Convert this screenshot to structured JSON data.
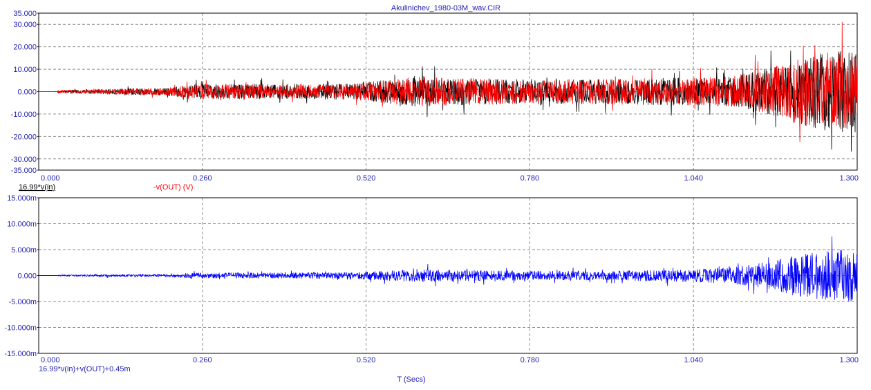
{
  "title": "Akulinichev_1980-03M_wav.CIR",
  "xlabel": "T (Secs)",
  "colors": {
    "axis_text": "#1f1fb4",
    "grid": "#8c8c8c",
    "trace_in": "#000000",
    "trace_out": "#ff0000",
    "trace_sum": "#0000ff"
  },
  "chart_data": [
    {
      "type": "line",
      "name": "top-panel",
      "x_ticks": [
        "0.000",
        "0.260",
        "0.520",
        "0.780",
        "1.040",
        "1.300"
      ],
      "y_ticks": [
        "35.000",
        "30.000",
        "20.000",
        "10.000",
        "0.000",
        "-10.000",
        "-20.000",
        "-30.000",
        "-35.000"
      ],
      "xlim": [
        0,
        1.3
      ],
      "ylim": [
        -35,
        35
      ],
      "grid": true,
      "legend": [
        "16.99*v(in)",
        "-v(OUT) (V)"
      ],
      "series": [
        {
          "name": "-v(OUT) (V)",
          "color": "#ff0000",
          "envelope": {
            "t": [
              0,
              0.04,
              0.1,
              0.2,
              0.26,
              0.4,
              0.5,
              0.6,
              0.65,
              0.8,
              0.9,
              1.0,
              1.1,
              1.15,
              1.2,
              1.25,
              1.3
            ],
            "amplitude": [
              0.3,
              1.2,
              2.0,
              3.0,
              6.0,
              6.0,
              6.5,
              12.0,
              11.0,
              10.0,
              10.0,
              11.0,
              12.0,
              18.0,
              25.0,
              32.0,
              33.0
            ]
          }
        },
        {
          "name": "16.99*v(in)",
          "color": "#000000",
          "envelope": {
            "t": [
              0,
              0.04,
              0.1,
              0.2,
              0.26,
              0.4,
              0.5,
              0.6,
              0.65,
              0.8,
              0.9,
              1.0,
              1.1,
              1.15,
              1.2,
              1.25,
              1.3
            ],
            "amplitude": [
              0.3,
              1.2,
              2.0,
              3.0,
              6.0,
              6.0,
              6.5,
              12.0,
              11.0,
              10.0,
              10.0,
              11.0,
              12.0,
              18.0,
              25.0,
              32.0,
              33.0
            ]
          }
        }
      ]
    },
    {
      "type": "line",
      "name": "bottom-panel",
      "x_ticks": [
        "0.000",
        "0.260",
        "0.520",
        "0.780",
        "1.040",
        "1.300"
      ],
      "y_ticks": [
        "15.000m",
        "10.000m",
        "5.000m",
        "0.000",
        "-5.000m",
        "-10.000m",
        "-15.000m"
      ],
      "xlim": [
        0,
        1.3
      ],
      "ylim": [
        -15,
        15
      ],
      "grid": true,
      "legend": [
        "16.99*v(in)+v(OUT)+0.45m"
      ],
      "series": [
        {
          "name": "16.99*v(in)+v(OUT)+0.45m",
          "color": "#0000ff",
          "envelope": {
            "t": [
              0,
              0.04,
              0.1,
              0.2,
              0.26,
              0.4,
              0.5,
              0.6,
              0.65,
              0.8,
              0.9,
              1.0,
              1.1,
              1.15,
              1.2,
              1.25,
              1.3
            ],
            "amplitude": [
              0,
              0.3,
              0.4,
              0.5,
              1.0,
              1.0,
              1.1,
              2.3,
              2.0,
              1.6,
              1.6,
              2.0,
              2.8,
              4.5,
              7.0,
              8.5,
              10.0
            ]
          }
        }
      ]
    }
  ]
}
